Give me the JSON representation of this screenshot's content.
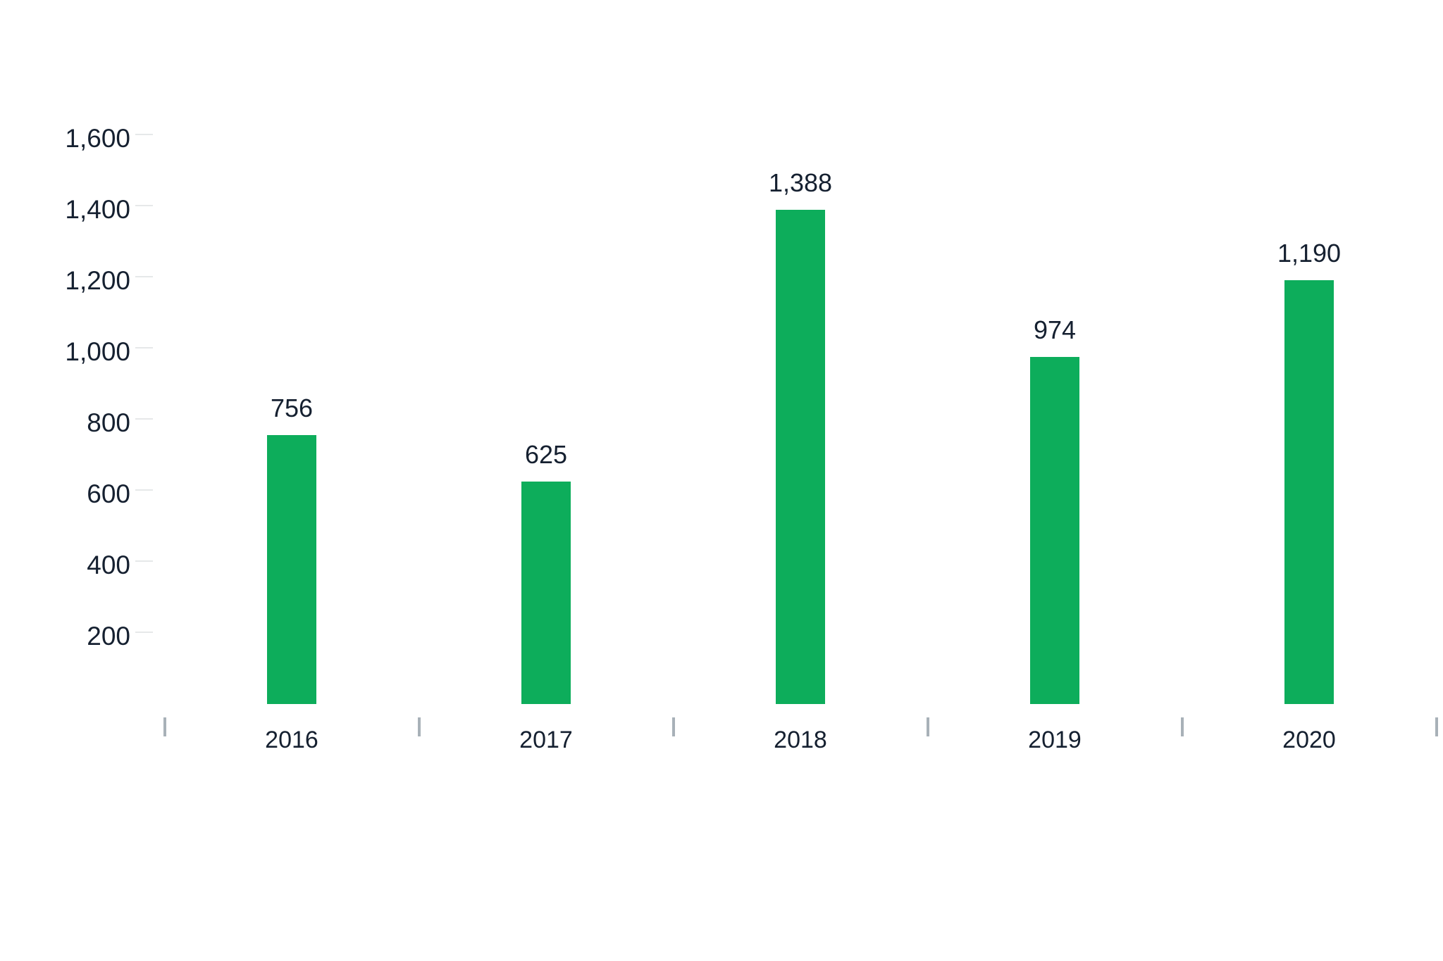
{
  "chart_data": {
    "type": "bar",
    "title": "",
    "xlabel": "",
    "ylabel": "",
    "categories": [
      "2016",
      "2017",
      "2018",
      "2019",
      "2020"
    ],
    "values": [
      756,
      625,
      1388,
      974,
      1190
    ],
    "value_labels": [
      "756",
      "625",
      "1,388",
      "974",
      "1,190"
    ],
    "y_tick_values": [
      200,
      400,
      600,
      800,
      1000,
      1200,
      1400,
      1600
    ],
    "y_tick_labels": [
      "200",
      "400",
      "600",
      "800",
      "1,000",
      "1,200",
      "1,400",
      "1,600"
    ],
    "ylim": [
      0,
      1600
    ],
    "grid": "off",
    "legend": "none",
    "axis_style": "short tick dashes beside y labels, vertical gray ticks between x categories, no axis lines",
    "colors": {
      "background": "#ffffff",
      "bar": "#0dad5b",
      "text": "#152030",
      "x_tick": "#a8b1b8",
      "y_tick": "#e6e8e9"
    }
  }
}
